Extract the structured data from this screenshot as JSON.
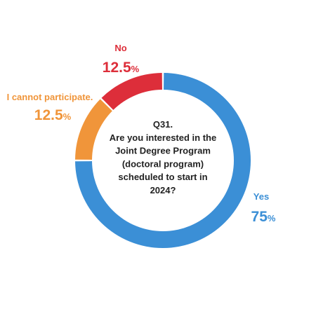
{
  "chart_data": {
    "type": "pie",
    "title": "Q31. Are you interested in the Joint Degree Program (doctoral program) scheduled to start in 2024?",
    "title_lines": [
      "Q31.",
      "Are you interested in the",
      "Joint Degree Program",
      "(doctoral program)",
      "scheduled to start in",
      "2024?"
    ],
    "unit": "%",
    "slices": [
      {
        "label": "Yes",
        "value": 75,
        "value_text": "75",
        "color": "#3b8fd6"
      },
      {
        "label": "I cannot participate.",
        "value": 12.5,
        "value_text": "12.5",
        "color": "#f0953a"
      },
      {
        "label": "No",
        "value": 12.5,
        "value_text": "12.5",
        "color": "#dd2e3a"
      }
    ]
  }
}
